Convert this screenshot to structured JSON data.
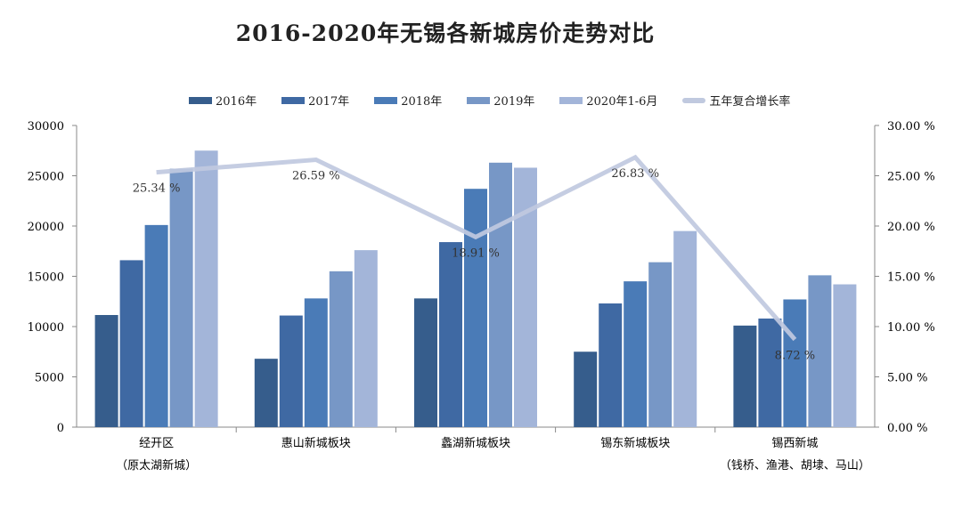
{
  "chart_data": {
    "type": "bar",
    "title": "2016-2020年无锡各新城房价走势对比",
    "categories": [
      [
        "经开区",
        "（原太湖新城）"
      ],
      [
        "惠山新城板块",
        ""
      ],
      [
        "蠡湖新城板块",
        ""
      ],
      [
        "锡东新城板块",
        ""
      ],
      [
        "锡西新城",
        "（钱桥、渔港、胡埭、马山）"
      ]
    ],
    "series": [
      {
        "name": "2016年",
        "color": "#365d8c",
        "values": [
          11150,
          6800,
          12800,
          7500,
          10100
        ]
      },
      {
        "name": "2017年",
        "color": "#3f69a3",
        "values": [
          16600,
          11100,
          18400,
          12300,
          10800
        ]
      },
      {
        "name": "2018年",
        "color": "#4a7bb7",
        "values": [
          20100,
          12800,
          23700,
          14500,
          12700
        ]
      },
      {
        "name": "2019年",
        "color": "#7797c6",
        "values": [
          25700,
          15500,
          26300,
          16400,
          15100
        ]
      },
      {
        "name": "2020年1-6月",
        "color": "#a3b5d9",
        "values": [
          27500,
          17600,
          25800,
          19500,
          14200
        ]
      }
    ],
    "line_series": {
      "name": "五年复合增长率",
      "color": "#c0c9df",
      "axis": "right",
      "values": [
        25.34,
        26.59,
        18.91,
        26.83,
        8.72
      ],
      "labels": [
        "25.34 %",
        "26.59 %",
        "18.91 %",
        "26.83 %",
        "8.72 %"
      ]
    },
    "ylim": [
      0,
      30000
    ],
    "yticks": [
      "0",
      "5000",
      "10000",
      "15000",
      "20000",
      "25000",
      "30000"
    ],
    "y2lim": [
      0,
      30
    ],
    "y2ticks": [
      "0.00 %",
      "5.00 %",
      "10.00 %",
      "15.00 %",
      "20.00 %",
      "25.00 %",
      "30.00 %"
    ],
    "grid": false,
    "legend_position": "top"
  }
}
